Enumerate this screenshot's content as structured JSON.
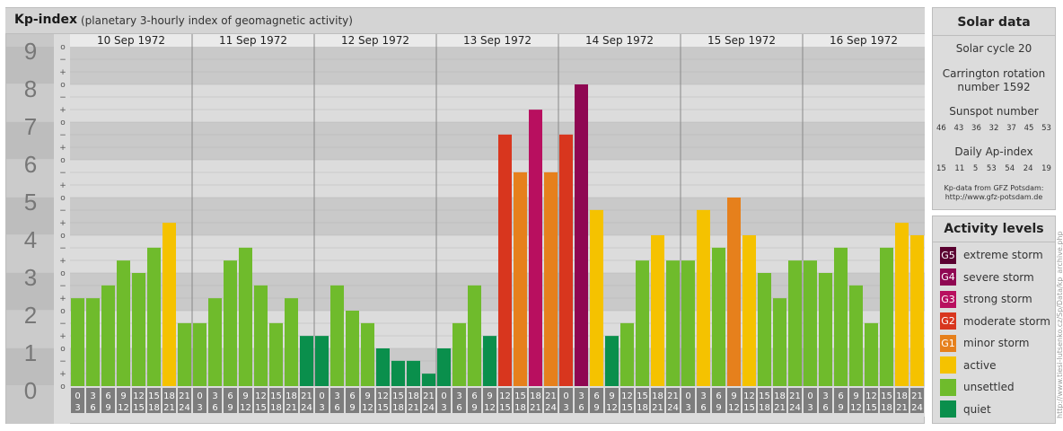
{
  "header": {
    "title": "Kp-index",
    "subtitle": "(planetary 3-hourly index of geomagnetic activity)"
  },
  "chart_data": {
    "type": "bar",
    "title": "Kp-index",
    "subtitle": "(planetary 3-hourly index of geomagnetic activity)",
    "ylim": [
      0,
      9
    ],
    "y_ticks": [
      "0",
      "1",
      "2",
      "3",
      "4",
      "5",
      "6",
      "7",
      "8",
      "9"
    ],
    "sub_ticks": [
      "o",
      "+",
      "−"
    ],
    "days": [
      "10 Sep 1972",
      "11 Sep 1972",
      "12 Sep 1972",
      "13 Sep 1972",
      "14 Sep 1972",
      "15 Sep 1972",
      "16 Sep 1972"
    ],
    "interval_starts": [
      "0",
      "3",
      "6",
      "9",
      "12",
      "15",
      "18",
      "21"
    ],
    "interval_ends": [
      "3",
      "6",
      "9",
      "12",
      "15",
      "18",
      "21",
      "24"
    ],
    "values": [
      [
        2.33,
        2.33,
        2.67,
        3.33,
        3.0,
        3.67,
        4.33,
        1.67
      ],
      [
        1.67,
        2.33,
        3.33,
        3.67,
        2.67,
        1.67,
        2.33,
        1.33
      ],
      [
        1.33,
        2.67,
        2.0,
        1.67,
        1.0,
        0.67,
        0.67,
        0.33
      ],
      [
        1.0,
        1.67,
        2.67,
        1.33,
        6.67,
        5.67,
        7.33,
        5.67
      ],
      [
        6.67,
        8.0,
        4.67,
        1.33,
        1.67,
        3.33,
        4.0,
        3.33
      ],
      [
        3.33,
        4.67,
        3.67,
        5.0,
        4.0,
        3.0,
        2.33,
        3.33
      ],
      [
        3.33,
        3.0,
        3.67,
        2.67,
        1.67,
        3.67,
        4.33,
        4.0
      ]
    ],
    "colors": {
      "quiet": "#0a8f4c",
      "unsettled": "#6fbb2c",
      "active": "#f5c200",
      "G1": "#e6801c",
      "G2": "#d8361e",
      "G3": "#b80f5f",
      "G4": "#8f0752",
      "G5": "#5a0030"
    }
  },
  "solar": {
    "title": "Solar data",
    "cycle": "Solar cycle 20",
    "carrington_1": "Carrington rotation",
    "carrington_2": "number 1592",
    "sunspot_label": "Sunspot number",
    "sunspot_values": [
      "46",
      "43",
      "36",
      "32",
      "37",
      "45",
      "53"
    ],
    "ap_label": "Daily Ap-index",
    "ap_values": [
      "15",
      "11",
      "5",
      "53",
      "54",
      "24",
      "19"
    ],
    "source_1": "Kp-data from GFZ Potsdam:",
    "source_2": "http://www.gfz-potsdam.de"
  },
  "activity": {
    "title": "Activity levels",
    "items": [
      {
        "code": "G5",
        "label": "extreme storm",
        "color": "#5a0030"
      },
      {
        "code": "G4",
        "label": "severe storm",
        "color": "#8f0752"
      },
      {
        "code": "G3",
        "label": "strong storm",
        "color": "#b80f5f"
      },
      {
        "code": "G2",
        "label": "moderate storm",
        "color": "#d8361e"
      },
      {
        "code": "G1",
        "label": "minor storm",
        "color": "#e6801c"
      },
      {
        "code": "",
        "label": "active",
        "color": "#f5c200"
      },
      {
        "code": "",
        "label": "unsettled",
        "color": "#6fbb2c"
      },
      {
        "code": "",
        "label": "quiet",
        "color": "#0a8f4c"
      }
    ]
  },
  "watermark": "http://www.tiesi-lutsenko.cz/Sp/Data/kp_archive.php"
}
